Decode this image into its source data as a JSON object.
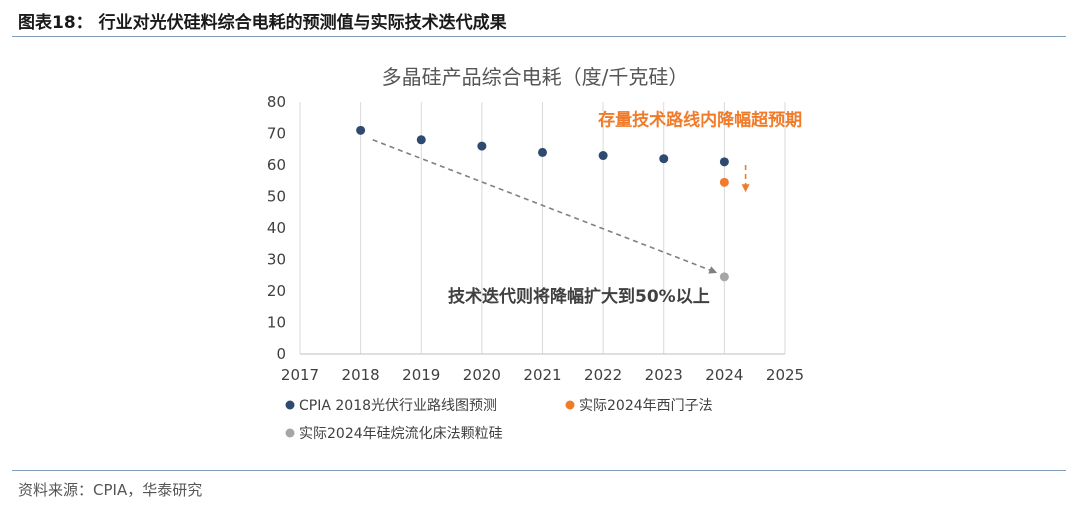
{
  "figure": {
    "title": "图表18：  行业对光伏硅料综合电耗的预测值与实际技术迭代成果",
    "source": "资料来源：CPIA，华泰研究"
  },
  "chart_data": {
    "type": "scatter",
    "title": "多晶硅产品综合电耗（度/千克硅）",
    "xlabel": "",
    "ylabel": "",
    "xlim": [
      2017,
      2025
    ],
    "ylim": [
      0,
      80
    ],
    "x_ticks": [
      2017,
      2018,
      2019,
      2020,
      2021,
      2022,
      2023,
      2024,
      2025
    ],
    "y_ticks": [
      0,
      10,
      20,
      30,
      40,
      50,
      60,
      70,
      80
    ],
    "grid": "vertical",
    "legend": "bottom",
    "series": [
      {
        "name": "CPIA 2018光伏行业路线图预测",
        "color": "#2e4a6e",
        "points": [
          [
            2018,
            71
          ],
          [
            2019,
            68
          ],
          [
            2020,
            66
          ],
          [
            2021,
            64
          ],
          [
            2022,
            63
          ],
          [
            2023,
            62
          ],
          [
            2024,
            61
          ]
        ]
      },
      {
        "name": "实际2024年西门子法",
        "color": "#f07b2a",
        "points": [
          [
            2024,
            54.5
          ]
        ]
      },
      {
        "name": "实际2024年硅烷流化床法颗粒硅",
        "color": "#a6a6a6",
        "points": [
          [
            2024,
            24.5
          ]
        ]
      }
    ],
    "annotations": [
      {
        "text": "存量技术路线内降幅超预期",
        "color": "#f07b2a",
        "at": [
          2023.6,
          72.5
        ]
      },
      {
        "text": "技术迭代则将降幅扩大到50%以上",
        "color": "#404040",
        "at": [
          2021.6,
          16.5
        ]
      }
    ],
    "arrows": [
      {
        "from": [
          2018.2,
          68
        ],
        "to": [
          2023.85,
          26
        ],
        "color": "#808080",
        "style": "dashed"
      },
      {
        "from": [
          2024.35,
          60
        ],
        "to": [
          2024.35,
          52
        ],
        "color": "#f07b2a",
        "style": "dashed"
      }
    ]
  }
}
